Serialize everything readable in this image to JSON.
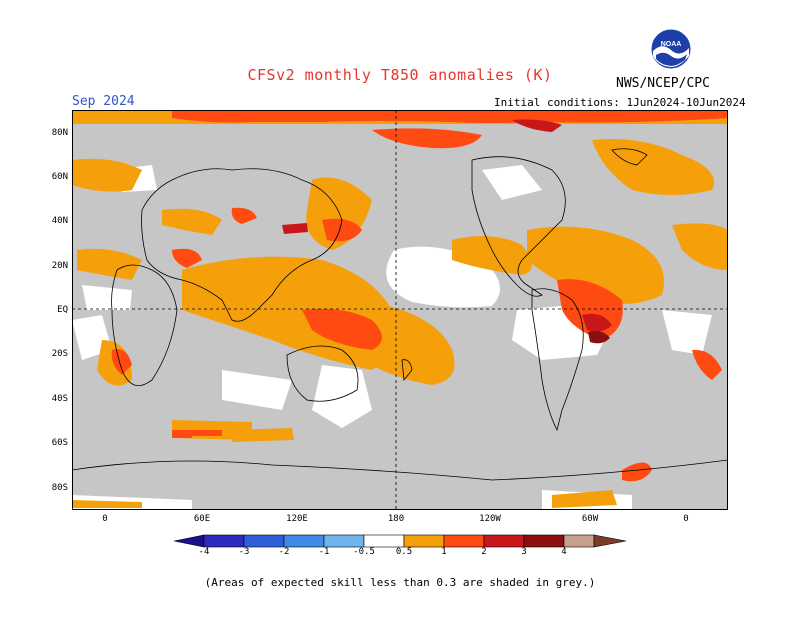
{
  "header": {
    "title": "CFSv2 monthly T850 anomalies (K)",
    "period": "Sep 2024",
    "init_conditions": "Initial conditions: 1Jun2024-10Jun2024",
    "agency": "NWS/NCEP/CPC",
    "logo_text": "NOAA"
  },
  "map": {
    "lat_labels": [
      "80N",
      "60N",
      "40N",
      "20N",
      "EQ",
      "20S",
      "40S",
      "60S",
      "80S"
    ],
    "lon_labels": [
      "0",
      "60E",
      "120E",
      "180",
      "120W",
      "60W",
      "0"
    ]
  },
  "colorbar": {
    "labels": [
      "-4",
      "-3",
      "-2",
      "-1",
      "-0.5",
      "0.5",
      "1",
      "2",
      "3",
      "4"
    ],
    "colors": {
      "below_min": "#1a0f8c",
      "neg4": "#2b2bbf",
      "neg3": "#2e5fd9",
      "neg2": "#3d8ce6",
      "neg1": "#6fb3f0",
      "neutral": "#ffffff",
      "pos05": "#f5a00a",
      "pos1": "#ff4a12",
      "pos2": "#c8171a",
      "pos3": "#8c0f0f",
      "pos4": "#c89e8c",
      "above_max": "#7a3c24"
    }
  },
  "colors": {
    "low_skill": "#c6c6c6",
    "anomaly_05_1": "#f5a00a",
    "anomaly_1_2": "#ff4a12",
    "anomaly_2_3": "#c8171a",
    "anomaly_3_4": "#8c0f0f"
  },
  "footnote": "(Areas of expected skill less than 0.3 are shaded in grey.)"
}
